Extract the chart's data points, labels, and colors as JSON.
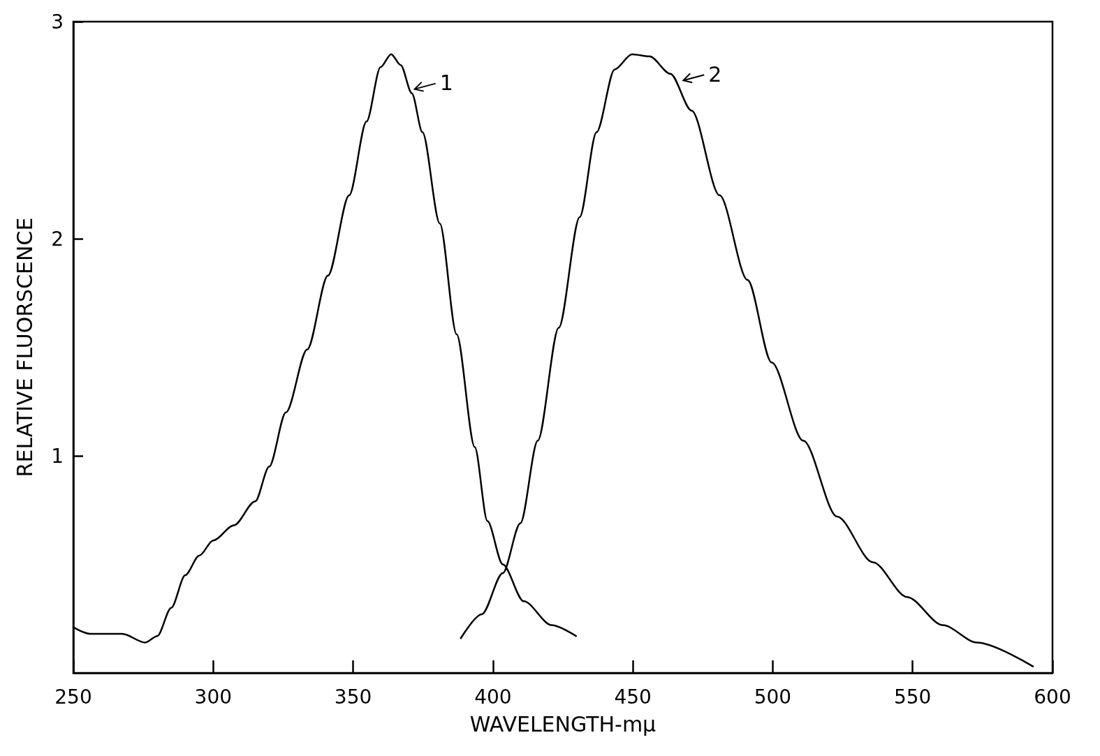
{
  "chart_data": {
    "type": "line",
    "xlabel": "WAVELENGTH-mμ",
    "ylabel": "RELATIVE FLUORSCENCE",
    "xlim": [
      250,
      600
    ],
    "xticks": [
      250,
      300,
      350,
      400,
      450,
      500,
      550,
      600
    ],
    "ylim": [
      0,
      3
    ],
    "yticks": [
      1,
      2,
      3
    ],
    "grid": false,
    "marker": "none",
    "line_style": "solid",
    "series": [
      {
        "color": "#000000",
        "x": [
          250,
          256,
          267.5,
          275.7,
          280,
          285,
          290,
          295,
          300,
          307.4,
          315,
          320,
          326,
          333.6,
          341,
          348.6,
          354.8,
          359.8,
          363.6,
          367,
          371,
          374.8,
          381,
          387,
          393.5,
          398,
          403.5,
          411,
          421,
          429.7
        ],
        "values": [
          0.21,
          0.18,
          0.18,
          0.14,
          0.17,
          0.3,
          0.45,
          0.54,
          0.61,
          0.68,
          0.79,
          0.95,
          1.2,
          1.49,
          1.83,
          2.2,
          2.54,
          2.79,
          2.85,
          2.8,
          2.67,
          2.49,
          2.07,
          1.56,
          1.04,
          0.7,
          0.5,
          0.33,
          0.22,
          0.17
        ]
      },
      {
        "color": "#000000",
        "x": [
          388.5,
          396,
          403.5,
          409.8,
          416,
          423.5,
          431,
          437,
          443.5,
          449.7,
          456,
          463.4,
          471,
          481,
          491,
          499.6,
          510.9,
          523,
          535.8,
          548,
          560.8,
          573,
          593
        ],
        "values": [
          0.16,
          0.27,
          0.46,
          0.69,
          1.07,
          1.59,
          2.1,
          2.49,
          2.78,
          2.85,
          2.84,
          2.76,
          2.59,
          2.2,
          1.81,
          1.43,
          1.07,
          0.72,
          0.51,
          0.35,
          0.22,
          0.14,
          0.03
        ]
      }
    ],
    "annotations": [
      {
        "text": "1",
        "x": 371,
        "y": 2.67
      },
      {
        "text": "2",
        "x": 467,
        "y": 2.71
      }
    ]
  }
}
